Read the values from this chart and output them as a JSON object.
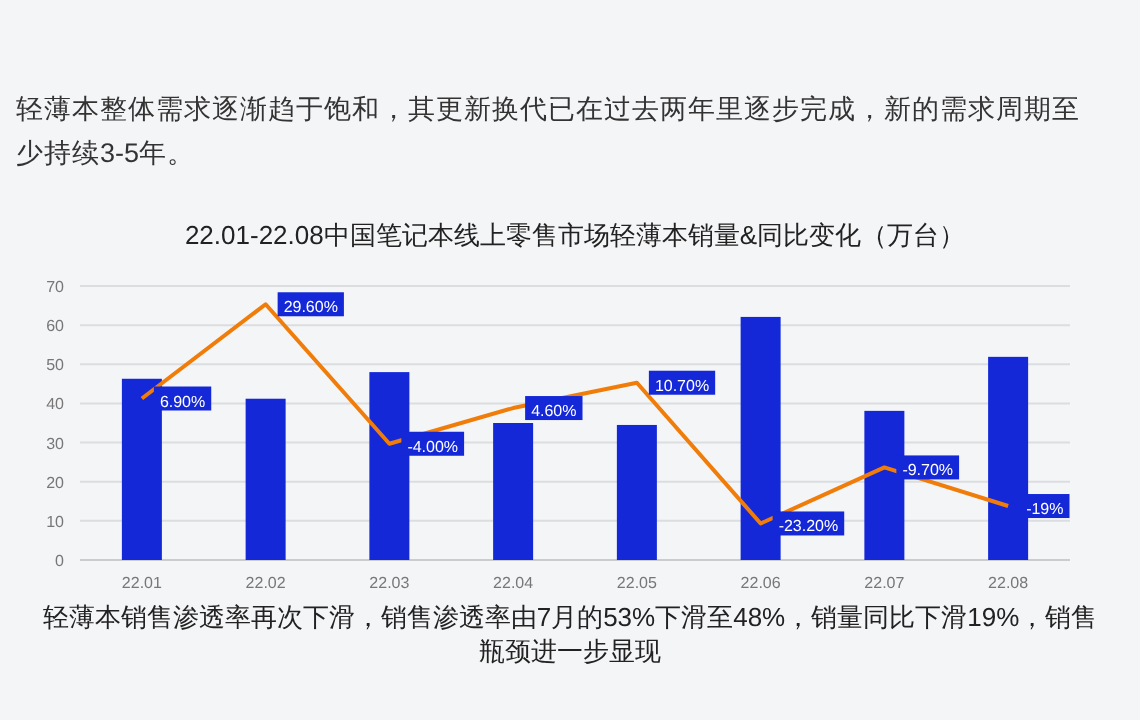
{
  "chart_data": {
    "type": "bar",
    "title": "22.01-22.08中国笔记本线上零售市场轻薄本销量&同比变化（万台）",
    "subtitle": "轻薄本整体需求逐渐趋于饱和，其更新换代已在过去两年里逐步完成，新的需求周期至少持续3-5年。",
    "annotations": [
      "轻薄本销售渗透率再次下滑，销售渗透率由7月的53%下滑至48%，销量同比下滑19%，销售瓶颈进一步显现"
    ],
    "categories": [
      "22.01",
      "22.02",
      "22.03",
      "22.04",
      "22.05",
      "22.06",
      "22.07",
      "22.08"
    ],
    "series": [
      {
        "color": "#1428d8",
        "values": [
          46.3,
          41.2,
          48,
          35,
          34.5,
          62.1,
          38.1,
          51.9
        ]
      },
      {
        "type": "line",
        "color": "#f07d0a",
        "axis": "y2",
        "values": [
          6.9,
          29.6,
          -4,
          4.6,
          10.7,
          -23.2,
          -9.7,
          -19
        ],
        "value_labels": [
          "6.90%",
          "29.60%",
          "-4.00%",
          "4.60%",
          "10.70%",
          "-23.20%",
          "-9.70%",
          "-19%"
        ]
      }
    ],
    "ylim": [
      0,
      70
    ],
    "yticks": [
      0,
      10,
      20,
      30,
      40,
      50,
      60,
      70
    ],
    "y2lim": [
      -32,
      34
    ],
    "tick_labels": "xy",
    "grid": "y",
    "marker": "none"
  }
}
